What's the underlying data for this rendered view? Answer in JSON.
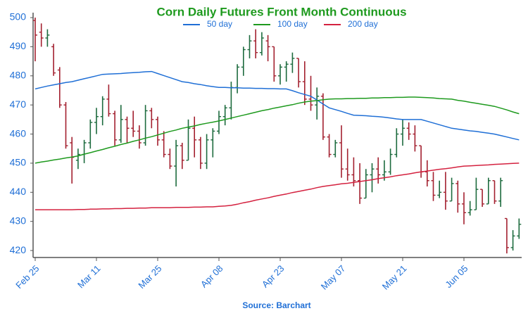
{
  "chart_data": {
    "type": "ohlc",
    "title": "Corn Daily Futures Front Month Continuous",
    "source": "Source: Barchart",
    "categories": [
      "Feb 25",
      null,
      null,
      null,
      null,
      null,
      null,
      null,
      null,
      null,
      "Mar 11",
      null,
      null,
      null,
      null,
      null,
      null,
      null,
      null,
      null,
      "Mar 25",
      null,
      null,
      null,
      null,
      null,
      null,
      null,
      null,
      null,
      "Apr 08",
      null,
      null,
      null,
      null,
      null,
      null,
      null,
      null,
      null,
      "Apr 23",
      null,
      null,
      null,
      null,
      null,
      null,
      null,
      null,
      null,
      "May 07",
      null,
      null,
      null,
      null,
      null,
      null,
      null,
      null,
      null,
      "May 21",
      null,
      null,
      null,
      null,
      null,
      null,
      null,
      null,
      null,
      "Jun 05",
      null,
      null,
      null,
      null,
      null,
      null,
      null,
      null,
      null
    ],
    "ohlc": [
      [
        499,
        500,
        485,
        494
      ],
      [
        495,
        498,
        490,
        493
      ],
      [
        493,
        496,
        490,
        494
      ],
      [
        490,
        491,
        480,
        481
      ],
      [
        482,
        483,
        469,
        470
      ],
      [
        470,
        471,
        455,
        456
      ],
      [
        457,
        459,
        443,
        452
      ],
      [
        451,
        455,
        448,
        453
      ],
      [
        453,
        458,
        450,
        457
      ],
      [
        457,
        465,
        455,
        464
      ],
      [
        464,
        469,
        460,
        466
      ],
      [
        466,
        473,
        463,
        472
      ],
      [
        472,
        477,
        466,
        467
      ],
      [
        467,
        468,
        456,
        458
      ],
      [
        458,
        470,
        457,
        465
      ],
      [
        465,
        466,
        457,
        462
      ],
      [
        462,
        468,
        459,
        461
      ],
      [
        461,
        463,
        455,
        457
      ],
      [
        457,
        470,
        456,
        468
      ],
      [
        468,
        469,
        462,
        465
      ],
      [
        465,
        466,
        456,
        458
      ],
      [
        458,
        461,
        452,
        453
      ],
      [
        453,
        455,
        448,
        449
      ],
      [
        449,
        458,
        442,
        456
      ],
      [
        456,
        457,
        448,
        451
      ],
      [
        451,
        465,
        451,
        462
      ],
      [
        462,
        466,
        452,
        458
      ],
      [
        458,
        459,
        448,
        450
      ],
      [
        450,
        460,
        448,
        458
      ],
      [
        458,
        462,
        452,
        461
      ],
      [
        461,
        468,
        460,
        466
      ],
      [
        466,
        470,
        463,
        469
      ],
      [
        469,
        478,
        465,
        476
      ],
      [
        476,
        484,
        474,
        483
      ],
      [
        483,
        490,
        480,
        489
      ],
      [
        489,
        494,
        486,
        492
      ],
      [
        492,
        496,
        486,
        488
      ],
      [
        488,
        495,
        487,
        493
      ],
      [
        492,
        494,
        485,
        490
      ],
      [
        490,
        490,
        478,
        480
      ],
      [
        480,
        484,
        477,
        483
      ],
      [
        483,
        485,
        478,
        484
      ],
      [
        484,
        488,
        481,
        486
      ],
      [
        486,
        486,
        476,
        478
      ],
      [
        478,
        485,
        470,
        472
      ],
      [
        472,
        480,
        468,
        470
      ],
      [
        470,
        476,
        465,
        473
      ],
      [
        473,
        474,
        458,
        459
      ],
      [
        459,
        460,
        452,
        453
      ],
      [
        453,
        458,
        452,
        457
      ],
      [
        457,
        463,
        445,
        448
      ],
      [
        448,
        455,
        444,
        446
      ],
      [
        446,
        452,
        442,
        444
      ],
      [
        444,
        450,
        436,
        438
      ],
      [
        438,
        448,
        438,
        446
      ],
      [
        446,
        450,
        440,
        448
      ],
      [
        448,
        452,
        443,
        446
      ],
      [
        446,
        451,
        444,
        447
      ],
      [
        447,
        455,
        446,
        453
      ],
      [
        453,
        462,
        452,
        460
      ],
      [
        460,
        465,
        456,
        462
      ],
      [
        462,
        464,
        458,
        460
      ],
      [
        460,
        463,
        454,
        456
      ],
      [
        456,
        456,
        445,
        447
      ],
      [
        447,
        451,
        442,
        444
      ],
      [
        444,
        447,
        437,
        439
      ],
      [
        439,
        444,
        438,
        440
      ],
      [
        440,
        447,
        434,
        437
      ],
      [
        437,
        445,
        437,
        443
      ],
      [
        443,
        444,
        433,
        436
      ],
      [
        436,
        440,
        429,
        433
      ],
      [
        433,
        437,
        432,
        434
      ],
      [
        434,
        445,
        434,
        441
      ],
      [
        441,
        441,
        435,
        436
      ],
      [
        436,
        445,
        436,
        444
      ],
      [
        444,
        444,
        436,
        437
      ],
      [
        437,
        445,
        435,
        444
      ],
      [
        431,
        431,
        419,
        421
      ],
      [
        421,
        427,
        420,
        425
      ],
      [
        425,
        431,
        424,
        429
      ]
    ],
    "up_color": "#1d6b3e",
    "down_color": "#a3202f",
    "series": [
      {
        "name": "50 day",
        "color": "#1f6fd6",
        "values": [
          475.5,
          476.0,
          476.5,
          476.9,
          477.3,
          477.7,
          478.0,
          478.5,
          479.0,
          479.5,
          480.0,
          480.5,
          480.6,
          480.7,
          480.8,
          481.0,
          481.1,
          481.2,
          481.4,
          481.5,
          480.8,
          480.1,
          479.4,
          478.7,
          478.0,
          477.7,
          477.3,
          477.0,
          476.6,
          476.3,
          476.0,
          476.0,
          475.9,
          475.9,
          475.8,
          475.8,
          475.7,
          475.7,
          475.6,
          475.6,
          475.5,
          475.5,
          474.9,
          474.2,
          473.6,
          473.0,
          471.7,
          470.3,
          469.0,
          468.4,
          467.8,
          467.1,
          466.5,
          466.4,
          466.3,
          466.1,
          466.0,
          465.8,
          465.5,
          465.2,
          465.0,
          465.0,
          465.0,
          465.0,
          464.4,
          463.8,
          463.2,
          462.6,
          462.0,
          461.7,
          461.4,
          461.1,
          460.9,
          460.6,
          460.3,
          460.0,
          459.5,
          459.0,
          458.5,
          458.0
        ]
      },
      {
        "name": "100 day",
        "color": "#1e9a1e",
        "values": [
          450.0,
          450.4,
          450.7,
          451.1,
          451.4,
          451.8,
          452.1,
          452.5,
          453.1,
          453.6,
          454.2,
          454.7,
          455.3,
          455.8,
          456.4,
          456.9,
          457.5,
          458.0,
          458.6,
          459.1,
          459.7,
          460.3,
          460.9,
          461.4,
          462.0,
          462.4,
          462.8,
          463.3,
          463.7,
          464.1,
          464.5,
          465.0,
          465.5,
          466.0,
          466.5,
          467.0,
          467.5,
          468.0,
          468.4,
          468.9,
          469.3,
          469.7,
          470.1,
          470.6,
          471.0,
          471.3,
          471.5,
          471.8,
          472.0,
          472.1,
          472.1,
          472.2,
          472.2,
          472.3,
          472.3,
          472.4,
          472.4,
          472.5,
          472.5,
          472.6,
          472.6,
          472.7,
          472.7,
          472.6,
          472.5,
          472.4,
          472.2,
          472.1,
          472.0,
          471.6,
          471.3,
          470.9,
          470.6,
          470.2,
          469.9,
          469.5,
          468.9,
          468.3,
          467.6,
          467.0
        ]
      },
      {
        "name": "200 day",
        "color": "#d4213f",
        "values": [
          434.0,
          434.0,
          434.0,
          434.0,
          434.0,
          434.0,
          434.0,
          434.1,
          434.1,
          434.2,
          434.2,
          434.3,
          434.3,
          434.4,
          434.4,
          434.5,
          434.5,
          434.6,
          434.6,
          434.7,
          434.7,
          434.7,
          434.7,
          434.8,
          434.8,
          434.8,
          434.9,
          434.9,
          435.0,
          435.0,
          435.2,
          435.3,
          435.5,
          435.9,
          436.4,
          436.8,
          437.3,
          437.7,
          438.1,
          438.6,
          439.0,
          439.4,
          439.9,
          440.3,
          440.7,
          441.1,
          441.6,
          442.0,
          442.3,
          442.6,
          442.9,
          443.1,
          443.4,
          443.7,
          444.0,
          444.3,
          444.7,
          445.0,
          445.3,
          445.7,
          446.0,
          446.3,
          446.7,
          447.0,
          447.3,
          447.6,
          447.9,
          448.1,
          448.4,
          448.7,
          449.0,
          449.1,
          449.2,
          449.3,
          449.4,
          449.6,
          449.7,
          449.8,
          449.9,
          450.0
        ]
      }
    ],
    "ylim": [
      417.6,
      501.7
    ],
    "yticks": [
      420,
      430,
      440,
      450,
      460,
      470,
      480,
      490,
      500
    ],
    "grid": false
  }
}
